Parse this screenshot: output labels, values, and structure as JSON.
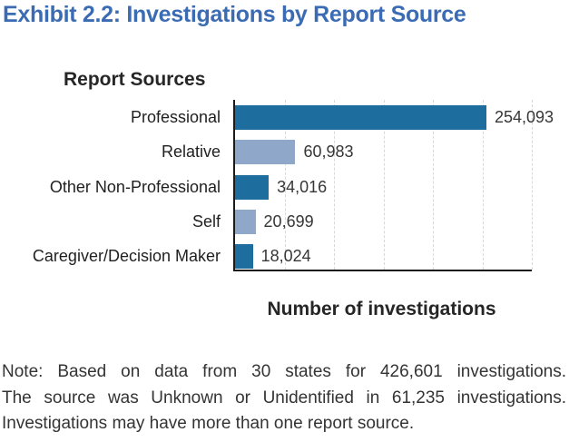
{
  "title": "Exhibit 2.2: Investigations by Report Source",
  "colors": {
    "title_blue": "#3b6cb3",
    "bar_dark": "#1e6d9f",
    "bar_light": "#8fa7c8",
    "axis": "#1a1a1a",
    "gridline": "#d8d8d8",
    "text": "#343434"
  },
  "chart_data": {
    "type": "bar",
    "orientation": "horizontal",
    "title": "Report Sources",
    "xlabel": "Number of investigations",
    "ylabel": "",
    "categories": [
      "Professional",
      "Relative",
      "Other Non-Professional",
      "Self",
      "Caregiver/Decision Maker"
    ],
    "values": [
      254093,
      60983,
      34016,
      20699,
      18024
    ],
    "value_labels": [
      "254,093",
      "60,983",
      "34,016",
      "20,699",
      "18,024"
    ],
    "bar_colors": [
      "#1e6d9f",
      "#8fa7c8",
      "#1e6d9f",
      "#8fa7c8",
      "#1e6d9f"
    ],
    "xlim": [
      0,
      300000
    ],
    "gridline_interval": 50000,
    "grid": "vertical-dashed",
    "legend": "none",
    "data_labels": "outside-end"
  },
  "note": {
    "line1": "Note: Based on data from 30 states for 426,601 investigations.",
    "line2": "The source was Unknown or Unidentified in 61,235 investigations.",
    "line3": "Investigations may have more than one report source."
  }
}
